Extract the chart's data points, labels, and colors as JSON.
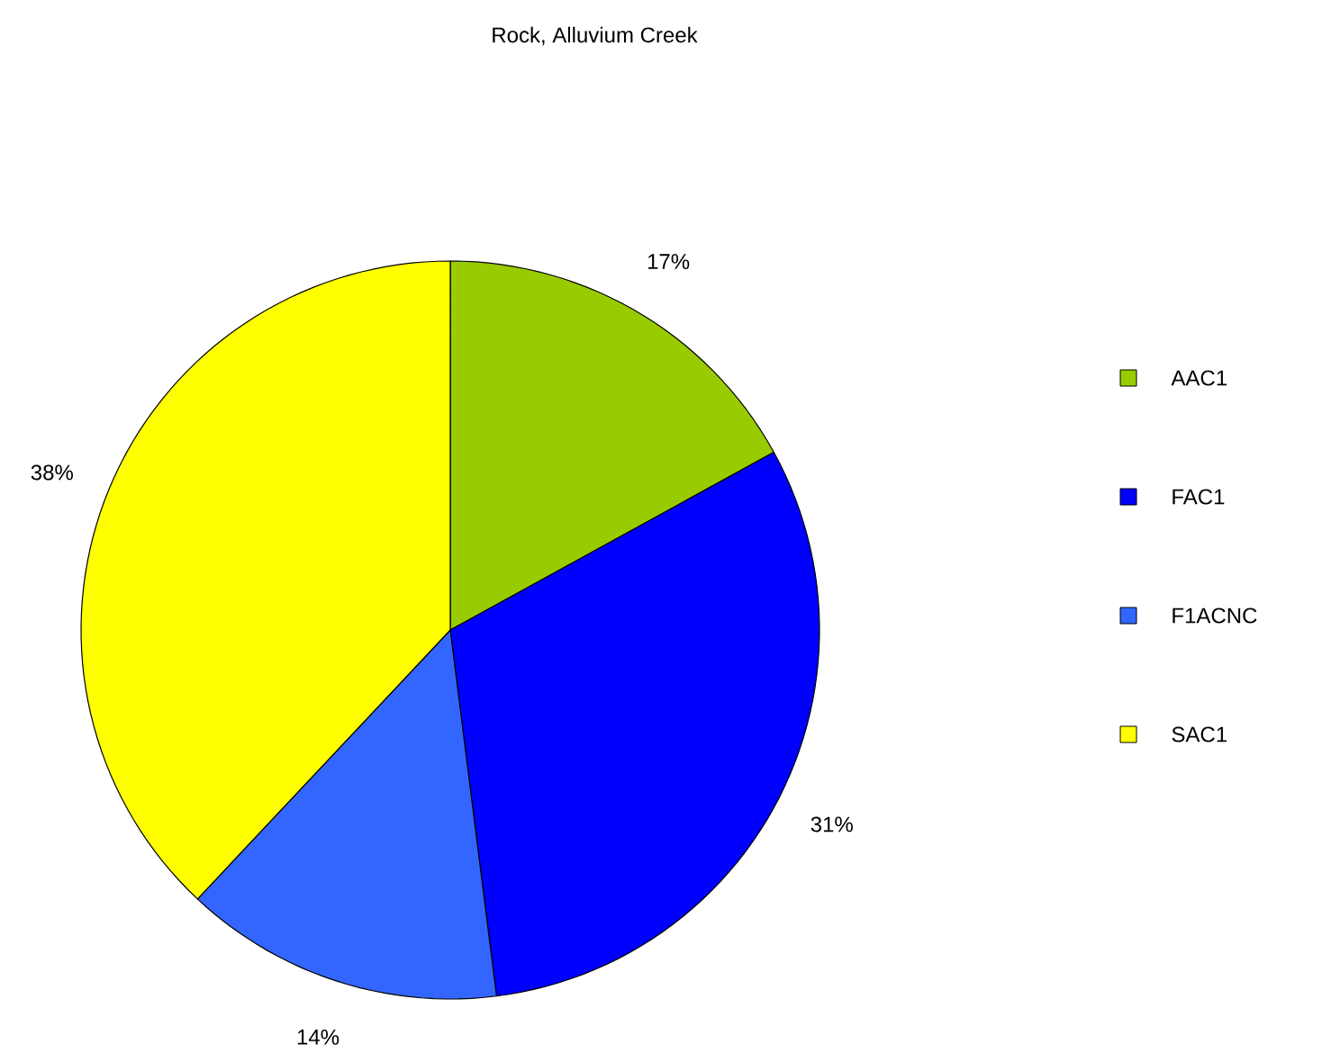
{
  "chart_data": {
    "type": "pie",
    "title": "Rock, Alluvium Creek",
    "categories": [
      "AAC1",
      "FAC1",
      "F1ACNC",
      "SAC1"
    ],
    "values": [
      17,
      31,
      14,
      38
    ],
    "colors": [
      "#99cc00",
      "#0000ff",
      "#3366ff",
      "#ffff00"
    ],
    "value_labels": [
      "17%",
      "31%",
      "14%",
      "38%"
    ],
    "legend": "right"
  }
}
